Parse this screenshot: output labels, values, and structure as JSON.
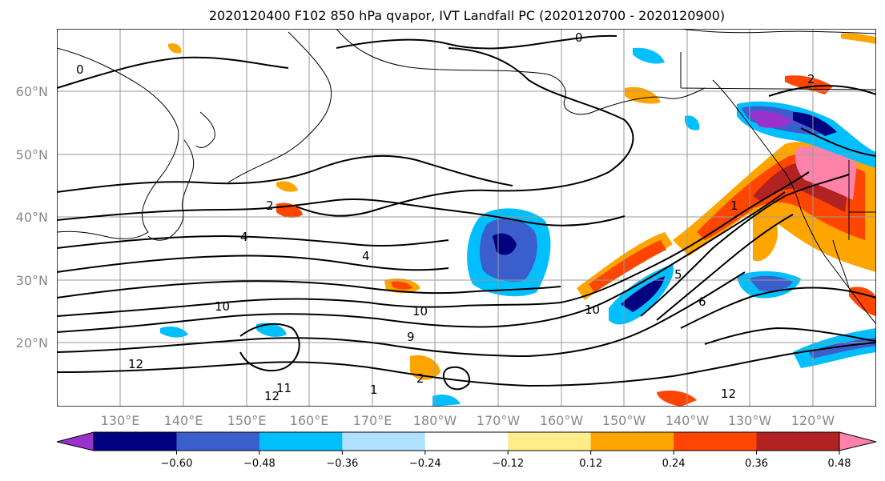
{
  "title": "2020120400 F102 850 hPa qvapor, IVT Landfall PC (2020120700 - 2020120900)",
  "lat_labels": [
    "60°N",
    "50°N",
    "40°N",
    "30°N",
    "20°N"
  ],
  "lon_labels": [
    "130°E",
    "140°E",
    "150°E",
    "160°E",
    "170°E",
    "180°W",
    "170°W",
    "160°W",
    "150°W",
    "140°W",
    "130°W",
    "120°W"
  ],
  "colorbar": {
    "colors": [
      "#9932cc",
      "#000080",
      "#3a5fcd",
      "#00bfff",
      "#b0e2ff",
      "#ffffff",
      "#ffec8b",
      "#ffa500",
      "#ff4500",
      "#b22222",
      "#ff82ab"
    ],
    "tick_labels": [
      "−0.60",
      "−0.48",
      "−0.36",
      "−0.24",
      "−0.12",
      "0.12",
      "0.24",
      "0.36",
      "0.48",
      "0.60"
    ]
  },
  "contour_labels": [
    "0",
    "0",
    "2",
    "2",
    "4",
    "4",
    "9",
    "10",
    "10",
    "10",
    "11",
    "12",
    "12",
    "12",
    "1",
    "1",
    "2",
    "5",
    "6"
  ]
}
